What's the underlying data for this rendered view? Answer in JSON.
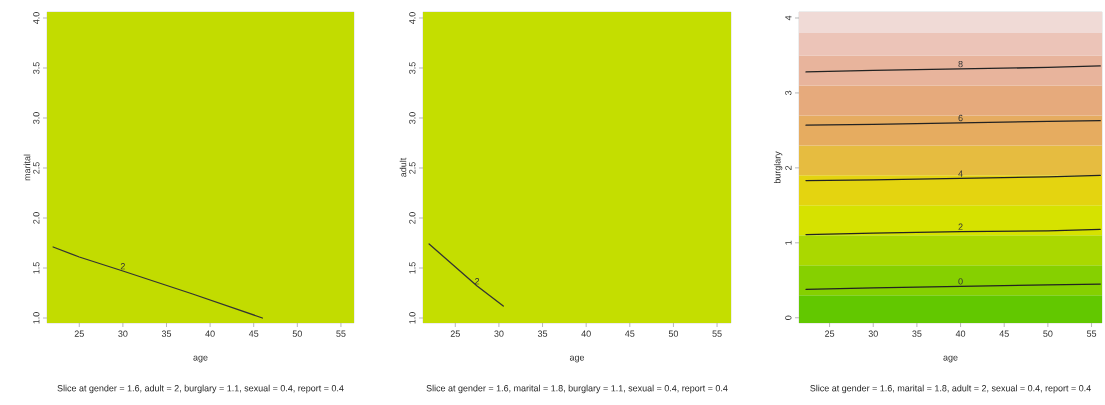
{
  "chart_data": [
    {
      "type": "line",
      "xlabel": "age",
      "ylabel": "marital",
      "annotations": [
        "Slice at gender = 1.6, adult = 2, burglary = 1.1, sexual = 0.4, report = 0.4"
      ],
      "xlim": [
        21.3,
        56.5
      ],
      "ylim": [
        0.95,
        4.06
      ],
      "xticks": [
        25,
        30,
        35,
        40,
        45,
        50,
        55
      ],
      "yticks": [
        {
          "value": 1,
          "label": "1.0"
        },
        1.5,
        {
          "value": 2,
          "label": "2.0"
        },
        2.5,
        {
          "value": 3,
          "label": "3.0"
        },
        3.5,
        {
          "value": 4,
          "label": "4.0"
        }
      ],
      "bands": [
        {
          "axis": "y",
          "from": 0.95,
          "to": 4.06,
          "color": "#c2dc00"
        }
      ],
      "marker": "none",
      "line_style": "solid",
      "series": [
        {
          "name": "2",
          "color": "#333333",
          "x": [
            22,
            25,
            30,
            38,
            46
          ],
          "values": [
            1.71,
            1.61,
            1.47,
            1.24,
            1.0
          ]
        }
      ]
    },
    {
      "type": "line",
      "xlabel": "age",
      "ylabel": "adult",
      "annotations": [
        "Slice at gender = 1.6, marital = 1.8, burglary = 1.1, sexual = 0.4, report = 0.4"
      ],
      "xlim": [
        21.3,
        56.6
      ],
      "ylim": [
        0.95,
        4.06
      ],
      "xticks": [
        25,
        30,
        35,
        40,
        45,
        50,
        55
      ],
      "yticks": [
        {
          "value": 1,
          "label": "1.0"
        },
        1.5,
        {
          "value": 2,
          "label": "2.0"
        },
        2.5,
        {
          "value": 3,
          "label": "3.0"
        },
        3.5,
        {
          "value": 4,
          "label": "4.0"
        }
      ],
      "bands": [
        {
          "axis": "y",
          "from": 0.95,
          "to": 4.06,
          "color": "#c4de00"
        }
      ],
      "marker": "none",
      "line_style": "solid",
      "series": [
        {
          "name": "2",
          "color": "#333333",
          "x": [
            22,
            27.5,
            30.5
          ],
          "values": [
            1.74,
            1.32,
            1.12
          ]
        }
      ]
    },
    {
      "type": "line",
      "xlabel": "age",
      "ylabel": "burglary",
      "annotations": [
        "Slice at gender = 1.6, marital = 1.8, adult = 2, sexual = 0.4, report = 0.4"
      ],
      "xlim": [
        21.5,
        56.2
      ],
      "ylim": [
        -0.07,
        4.08
      ],
      "xticks": [
        25,
        30,
        35,
        40,
        45,
        50,
        55
      ],
      "yticks": [
        0,
        1,
        2,
        3,
        4
      ],
      "bands": [
        {
          "axis": "y",
          "from": -0.07,
          "to": 0.3,
          "color": "#62c800"
        },
        {
          "axis": "y",
          "from": 0.3,
          "to": 0.7,
          "color": "#86d000"
        },
        {
          "axis": "y",
          "from": 0.7,
          "to": 1.1,
          "color": "#aad800"
        },
        {
          "axis": "y",
          "from": 1.1,
          "to": 1.5,
          "color": "#d6e200"
        },
        {
          "axis": "y",
          "from": 1.5,
          "to": 1.9,
          "color": "#e4d410"
        },
        {
          "axis": "y",
          "from": 1.9,
          "to": 2.3,
          "color": "#e6bc40"
        },
        {
          "axis": "y",
          "from": 2.3,
          "to": 2.7,
          "color": "#e6ac60"
        },
        {
          "axis": "y",
          "from": 2.7,
          "to": 3.1,
          "color": "#e6aa7c"
        },
        {
          "axis": "y",
          "from": 3.1,
          "to": 3.5,
          "color": "#e8b49c"
        },
        {
          "axis": "y",
          "from": 3.5,
          "to": 3.8,
          "color": "#ecc4b8"
        },
        {
          "axis": "y",
          "from": 3.8,
          "to": 4.08,
          "color": "#f0dad6"
        }
      ],
      "marker": "none",
      "line_style": "solid",
      "series": [
        {
          "name": "0",
          "color": "#222222",
          "x": [
            22.3,
            30,
            40,
            50,
            56
          ],
          "values": [
            0.38,
            0.4,
            0.42,
            0.44,
            0.45
          ]
        },
        {
          "name": "2",
          "color": "#222222",
          "x": [
            22.3,
            30,
            40,
            50,
            56
          ],
          "values": [
            1.11,
            1.13,
            1.15,
            1.16,
            1.18
          ]
        },
        {
          "name": "4",
          "color": "#222222",
          "x": [
            22.3,
            30,
            40,
            50,
            56
          ],
          "values": [
            1.83,
            1.84,
            1.86,
            1.88,
            1.9
          ]
        },
        {
          "name": "6",
          "color": "#222222",
          "x": [
            22.3,
            30,
            40,
            50,
            56
          ],
          "values": [
            2.57,
            2.58,
            2.6,
            2.62,
            2.63
          ]
        },
        {
          "name": "8",
          "color": "#222222",
          "x": [
            22.3,
            30,
            40,
            50,
            56
          ],
          "values": [
            3.28,
            3.3,
            3.32,
            3.34,
            3.36
          ]
        }
      ]
    }
  ]
}
